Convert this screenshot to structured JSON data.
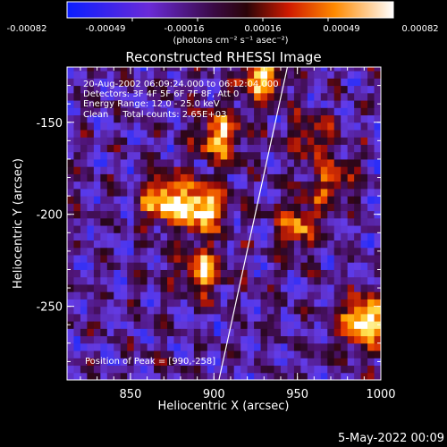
{
  "colorbar": {
    "ticks": [
      "-0.00082",
      "-0.00049",
      "-0.00016",
      "0.00016",
      "0.00049",
      "0.00082"
    ],
    "units": "(photons cm⁻² s⁻¹ asec⁻²)"
  },
  "chart_data": {
    "type": "heatmap",
    "title": "Reconstructed RHESSI Image",
    "xlabel": "Heliocentric X (arcsec)",
    "ylabel": "Heliocentric Y (arcsec)",
    "xlim": [
      812,
      1000
    ],
    "ylim": [
      -290,
      -120
    ],
    "xticks": [
      850,
      900,
      950,
      1000
    ],
    "yticks": [
      -150,
      -200,
      -250
    ],
    "value_range": [
      -0.00082,
      0.00082
    ],
    "colormap": "blue-purple-red-yellow-white",
    "limb_line": {
      "x": [
        903,
        944
      ],
      "y": [
        -290,
        -120
      ]
    },
    "hot_regions": [
      {
        "x": 990,
        "y": -258,
        "peak": 0.00082
      },
      {
        "x": 893,
        "y": -196,
        "peak": 0.00075
      },
      {
        "x": 870,
        "y": -192,
        "peak": 0.00065
      },
      {
        "x": 903,
        "y": -157,
        "peak": 0.0006
      },
      {
        "x": 893,
        "y": -231,
        "peak": 0.00055
      },
      {
        "x": 950,
        "y": -205,
        "peak": 0.0005
      },
      {
        "x": 928,
        "y": -125,
        "peak": 0.00065
      },
      {
        "x": 970,
        "y": -182,
        "peak": 0.0004
      },
      {
        "x": 958,
        "y": -158,
        "peak": 0.00035
      }
    ],
    "annotations": [
      "20-Aug-2002 06:09:24.000 to 06:12:04.000",
      "Detectors: 3F 4F 5F 6F 7F 8F, Att 0",
      "Energy Range: 12.0 - 25.0 keV",
      "Clean     Total counts: 2.65E+03"
    ],
    "peak_label": "Position of Peak = [990,-258]"
  },
  "footer": {
    "date": "5-May-2022 00:09"
  }
}
